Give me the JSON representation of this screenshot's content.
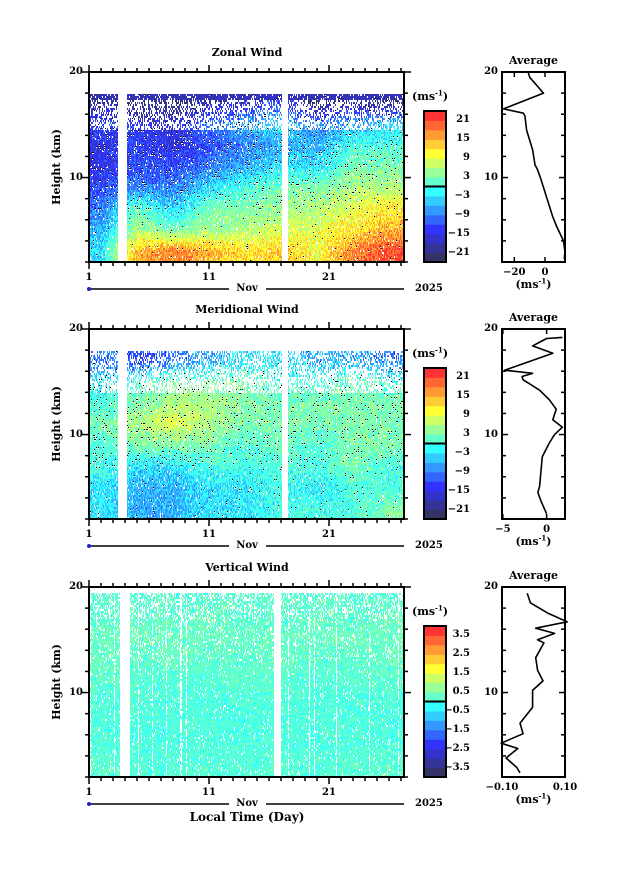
{
  "figure": {
    "xlabel": "Local Time (Day)",
    "month": "Nov",
    "year": "2025",
    "ylabel": "Height (km)",
    "unit": "(ms",
    "unit_exp": "-1",
    "avg_title": "Average",
    "x_tick_labels": [
      "1",
      "11",
      "21"
    ],
    "y_tick_labels": [
      "10",
      "20"
    ],
    "month_marker_color": "#2222cc"
  },
  "colormap": [
    "#333366",
    "#333399",
    "#3333cc",
    "#3333ff",
    "#3366ff",
    "#3399ff",
    "#33ccff",
    "#33ffff",
    "#66ffcc",
    "#99ff99",
    "#ccff66",
    "#ffff33",
    "#ffcc33",
    "#ff9933",
    "#ff6633",
    "#ff3333"
  ],
  "chart_data": [
    {
      "type": "heatmap",
      "title": "Zonal Wind",
      "xlabel": "Local Time (Day)",
      "ylabel": "Height (km)",
      "xlim": [
        1,
        27.25
      ],
      "ylim": [
        2,
        20
      ],
      "color_range": [
        -24,
        24
      ],
      "color_step": 3,
      "colorbar_labels": [
        "21",
        "15",
        "9",
        "3",
        "-3",
        "-9",
        "-15",
        "-21"
      ],
      "data_gaps_days": [
        [
          3.4,
          4.2
        ],
        [
          17.1,
          17.6
        ]
      ],
      "grid_heights_km": [
        3,
        5,
        7,
        9,
        11,
        13,
        15,
        17,
        19
      ],
      "grid_days": [
        2,
        5,
        8,
        11,
        14,
        17,
        20,
        23,
        26
      ],
      "values": [
        [
          -3,
          15,
          18,
          15,
          12,
          14,
          10,
          18,
          21
        ],
        [
          -6,
          6,
          3,
          5,
          6,
          8,
          9,
          12,
          15
        ],
        [
          -9,
          2,
          -4,
          3,
          3,
          5,
          6,
          9,
          12
        ],
        [
          -12,
          -8,
          -9,
          -3,
          0,
          3,
          3,
          6,
          6
        ],
        [
          -15,
          -12,
          -12,
          -9,
          -6,
          -3,
          -3,
          3,
          3
        ],
        [
          -15,
          -12,
          -15,
          -12,
          -9,
          -6,
          -6,
          0,
          0
        ],
        [
          -12,
          -15,
          -15,
          -9,
          -6,
          -3,
          -9,
          -6,
          -3
        ],
        [
          -18,
          -21,
          -21,
          -18,
          -15,
          -12,
          -21,
          -18,
          -21
        ],
        [
          null,
          null,
          null,
          null,
          null,
          null,
          null,
          null,
          null
        ]
      ],
      "max_data_height_km": 18.5
    },
    {
      "type": "heatmap",
      "title": "Meridional Wind",
      "xlabel": "Local Time (Day)",
      "ylabel": "Height (km)",
      "xlim": [
        1,
        27.25
      ],
      "ylim": [
        2,
        20
      ],
      "color_range": [
        -24,
        24
      ],
      "color_step": 3,
      "colorbar_labels": [
        "21",
        "15",
        "9",
        "3",
        "-3",
        "-9",
        "-15",
        "-21"
      ],
      "data_gaps_days": [
        [
          3.4,
          4.2
        ],
        [
          17.1,
          17.6
        ]
      ],
      "grid_heights_km": [
        3,
        5,
        7,
        9,
        11,
        13,
        15,
        17,
        19
      ],
      "grid_days": [
        2,
        5,
        8,
        11,
        14,
        17,
        20,
        23,
        26
      ],
      "values": [
        [
          -3,
          -6,
          -6,
          -3,
          -3,
          0,
          0,
          0,
          3
        ],
        [
          -3,
          -6,
          -6,
          -3,
          -3,
          0,
          -3,
          0,
          0
        ],
        [
          0,
          -3,
          -3,
          0,
          0,
          0,
          0,
          3,
          0
        ],
        [
          0,
          3,
          3,
          3,
          0,
          3,
          0,
          3,
          3
        ],
        [
          3,
          6,
          9,
          6,
          3,
          3,
          3,
          3,
          3
        ],
        [
          0,
          3,
          6,
          6,
          3,
          3,
          3,
          3,
          3
        ],
        [
          -3,
          0,
          3,
          3,
          3,
          0,
          0,
          3,
          0
        ],
        [
          -9,
          -12,
          -9,
          -6,
          -3,
          -3,
          -6,
          -6,
          -9
        ],
        [
          null,
          null,
          null,
          null,
          null,
          null,
          null,
          null,
          null
        ]
      ],
      "max_data_height_km": 18.0
    },
    {
      "type": "heatmap",
      "title": "Vertical Wind",
      "xlabel": "Local Time (Day)",
      "ylabel": "Height (km)",
      "xlim": [
        1,
        27.25
      ],
      "ylim": [
        2,
        20
      ],
      "color_range": [
        -4,
        4
      ],
      "color_step": 0.5,
      "colorbar_labels": [
        "3.5",
        "2.5",
        "1.5",
        "0.5",
        "-0.5",
        "-1.5",
        "-2.5",
        "-3.5"
      ],
      "data_gaps_days": [
        [
          3.6,
          4.4
        ],
        [
          16.4,
          17.0
        ]
      ],
      "grid_heights_km": [
        3,
        5,
        7,
        9,
        11,
        13,
        15,
        17,
        19
      ],
      "grid_days": [
        2,
        5,
        8,
        11,
        14,
        17,
        20,
        23,
        26
      ],
      "values": [
        [
          0.2,
          0.1,
          0.1,
          0.2,
          0.1,
          0.2,
          0.1,
          0.2,
          0.2
        ],
        [
          0.1,
          0.1,
          0.0,
          0.1,
          0.1,
          0.1,
          0.0,
          0.1,
          0.1
        ],
        [
          0.1,
          0.0,
          0.1,
          0.1,
          0.0,
          0.1,
          0.1,
          0.1,
          0.0
        ],
        [
          0.1,
          0.1,
          0.1,
          0.0,
          0.1,
          0.1,
          0.1,
          0.0,
          0.1
        ],
        [
          0.2,
          0.2,
          0.1,
          0.2,
          0.2,
          0.2,
          0.1,
          0.2,
          0.2
        ],
        [
          0.3,
          0.2,
          0.3,
          0.2,
          0.2,
          0.3,
          0.2,
          0.2,
          0.3
        ],
        [
          0.3,
          0.3,
          0.3,
          0.3,
          0.3,
          0.3,
          0.3,
          0.3,
          0.3
        ],
        [
          0.2,
          0.3,
          0.2,
          0.3,
          0.2,
          0.2,
          0.3,
          0.2,
          0.3
        ],
        [
          0.2,
          0.2,
          0.2,
          0.2,
          0.2,
          0.2,
          0.2,
          0.2,
          0.2
        ]
      ],
      "max_data_height_km": 19.5
    },
    {
      "type": "line",
      "title": "Average",
      "of": "Zonal Wind",
      "xlabel": "(ms-1)",
      "ylabel": "Height (km)",
      "xlim": [
        -28,
        13
      ],
      "ylim": [
        2,
        20
      ],
      "x_tick_labels": [
        "-20",
        "0"
      ],
      "x_ticks": [
        -20,
        0
      ],
      "points": [
        [
          -11,
          20
        ],
        [
          -10,
          19.5
        ],
        [
          -1,
          18.0
        ],
        [
          -27,
          16.5
        ],
        [
          -14,
          16.1
        ],
        [
          -13,
          15.8
        ],
        [
          -12,
          14.5
        ],
        [
          -8,
          12.6
        ],
        [
          -6.5,
          11.2
        ],
        [
          -5,
          10.8
        ],
        [
          -3,
          10
        ],
        [
          5,
          6.3
        ],
        [
          7.5,
          5.4
        ],
        [
          12,
          4
        ],
        [
          13,
          2.9
        ],
        [
          12.5,
          2.3
        ]
      ]
    },
    {
      "type": "line",
      "title": "Average",
      "of": "Meridional Wind",
      "xlabel": "(ms-1)",
      "ylabel": "Height (km)",
      "xlim": [
        -5.1,
        2.1
      ],
      "ylim": [
        2,
        20
      ],
      "x_tick_labels": [
        "-5",
        "0"
      ],
      "x_ticks": [
        -5,
        0
      ],
      "points": [
        [
          1.8,
          19.2
        ],
        [
          0,
          19.1
        ],
        [
          -1.6,
          18.4
        ],
        [
          0.7,
          17.7
        ],
        [
          -4.8,
          16.1
        ],
        [
          -1.6,
          15.8
        ],
        [
          -2.8,
          15.5
        ],
        [
          -2.7,
          15.2
        ],
        [
          -0.8,
          14.2
        ],
        [
          0.3,
          13.3
        ],
        [
          1.1,
          12.4
        ],
        [
          0.7,
          11.4
        ],
        [
          1.8,
          10.7
        ],
        [
          0.9,
          10
        ],
        [
          0.3,
          9.2
        ],
        [
          -0.5,
          7.9
        ],
        [
          -0.6,
          7
        ],
        [
          -0.8,
          5.1
        ],
        [
          -1,
          4.5
        ],
        [
          -0.6,
          3.6
        ],
        [
          0,
          2.5
        ]
      ]
    },
    {
      "type": "line",
      "title": "Average",
      "of": "Vertical Wind",
      "xlabel": "(ms-1)",
      "ylabel": "Height (km)",
      "xlim": [
        -0.1,
        0.1
      ],
      "ylim": [
        2,
        20
      ],
      "x_tick_labels": [
        "-0.10",
        "0.10"
      ],
      "x_ticks": [
        -0.1,
        0.1
      ],
      "points": [
        [
          -0.02,
          19.4
        ],
        [
          -0.01,
          18.5
        ],
        [
          0.047,
          17.5
        ],
        [
          0.107,
          16.7
        ],
        [
          0.007,
          16.1
        ],
        [
          0.067,
          15.6
        ],
        [
          0.013,
          15
        ],
        [
          0.033,
          14.7
        ],
        [
          0.007,
          13.3
        ],
        [
          0.013,
          12.1
        ],
        [
          0.03,
          11.1
        ],
        [
          -0.003,
          10.2
        ],
        [
          -0.003,
          8.6
        ],
        [
          -0.043,
          7.1
        ],
        [
          -0.033,
          6.1
        ],
        [
          -0.103,
          5.2
        ],
        [
          -0.05,
          4.7
        ],
        [
          -0.087,
          3.8
        ],
        [
          -0.053,
          2.9
        ],
        [
          -0.043,
          2.4
        ]
      ]
    }
  ]
}
